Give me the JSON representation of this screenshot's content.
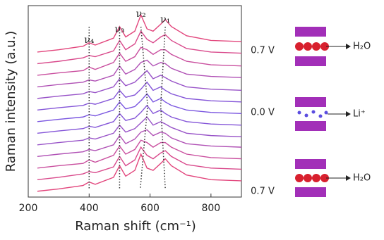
{
  "chart_data": {
    "type": "line",
    "x_label": "Raman shift (cm⁻¹)",
    "y_label": "Raman intensity (a.u.)",
    "x": [
      230,
      300,
      380,
      400,
      420,
      480,
      500,
      520,
      550,
      570,
      590,
      610,
      635,
      650,
      670,
      720,
      800,
      900
    ],
    "xlim": [
      200,
      900
    ],
    "xticks": [
      200,
      400,
      600,
      800
    ],
    "ylim": [
      -0.5,
      16
    ],
    "series": [
      {
        "color": "#e2457c",
        "values": [
          0.0,
          0.2,
          0.5,
          0.8,
          0.6,
          1.2,
          2.2,
          1.3,
          1.8,
          3.2,
          2.0,
          1.8,
          2.4,
          2.8,
          2.2,
          1.4,
          1.0,
          0.9
        ]
      },
      {
        "color": "#d94a8c",
        "values": [
          0.0,
          0.2,
          0.5,
          0.7,
          0.6,
          1.1,
          2.0,
          1.2,
          1.7,
          2.8,
          2.1,
          1.8,
          2.3,
          2.5,
          2.0,
          1.3,
          1.0,
          0.9
        ]
      },
      {
        "color": "#c94e9e",
        "values": [
          0.0,
          0.2,
          0.4,
          0.7,
          0.5,
          1.1,
          1.9,
          1.2,
          1.6,
          2.4,
          2.2,
          1.8,
          2.2,
          2.2,
          1.8,
          1.2,
          0.9,
          0.8
        ]
      },
      {
        "color": "#b051b5",
        "values": [
          0.0,
          0.2,
          0.4,
          0.6,
          0.5,
          1.0,
          1.8,
          1.1,
          1.5,
          2.1,
          2.3,
          1.8,
          2.1,
          2.0,
          1.6,
          1.1,
          0.9,
          0.8
        ]
      },
      {
        "color": "#9853c8",
        "values": [
          0.0,
          0.2,
          0.4,
          0.6,
          0.5,
          1.0,
          1.7,
          1.1,
          1.4,
          1.9,
          2.4,
          1.7,
          2.0,
          1.8,
          1.5,
          1.0,
          0.8,
          0.7
        ]
      },
      {
        "color": "#8455d8",
        "values": [
          0.0,
          0.2,
          0.4,
          0.6,
          0.5,
          1.0,
          1.7,
          1.1,
          1.3,
          1.8,
          2.4,
          1.7,
          2.0,
          1.7,
          1.4,
          1.0,
          0.8,
          0.7
        ]
      },
      {
        "color": "#7a56e0",
        "values": [
          0.0,
          0.2,
          0.4,
          0.6,
          0.5,
          1.0,
          1.7,
          1.1,
          1.3,
          1.8,
          2.4,
          1.7,
          2.0,
          1.7,
          1.4,
          1.0,
          0.8,
          0.7
        ]
      },
      {
        "color": "#8455d8",
        "values": [
          0.0,
          0.2,
          0.4,
          0.6,
          0.5,
          1.0,
          1.7,
          1.1,
          1.3,
          1.8,
          2.4,
          1.7,
          2.0,
          1.7,
          1.4,
          1.0,
          0.8,
          0.7
        ]
      },
      {
        "color": "#9853c8",
        "values": [
          0.0,
          0.2,
          0.4,
          0.6,
          0.5,
          1.0,
          1.7,
          1.1,
          1.4,
          1.9,
          2.4,
          1.7,
          2.0,
          1.8,
          1.5,
          1.0,
          0.8,
          0.7
        ]
      },
      {
        "color": "#b051b5",
        "values": [
          0.0,
          0.2,
          0.4,
          0.6,
          0.5,
          1.0,
          1.8,
          1.1,
          1.5,
          2.1,
          2.3,
          1.8,
          2.1,
          2.0,
          1.6,
          1.1,
          0.9,
          0.8
        ]
      },
      {
        "color": "#c94e9e",
        "values": [
          0.0,
          0.2,
          0.4,
          0.7,
          0.5,
          1.1,
          1.9,
          1.2,
          1.6,
          2.4,
          2.2,
          1.8,
          2.2,
          2.2,
          1.8,
          1.2,
          0.9,
          0.8
        ]
      },
      {
        "color": "#d94a8c",
        "values": [
          0.0,
          0.2,
          0.5,
          0.7,
          0.6,
          1.1,
          2.0,
          1.2,
          1.7,
          2.8,
          2.1,
          1.8,
          2.3,
          2.5,
          2.0,
          1.3,
          1.0,
          0.9
        ]
      },
      {
        "color": "#e2457c",
        "values": [
          0.0,
          0.2,
          0.5,
          0.8,
          0.6,
          1.2,
          2.2,
          1.3,
          1.8,
          3.2,
          2.0,
          1.8,
          2.4,
          2.8,
          2.2,
          1.4,
          1.0,
          0.9
        ]
      }
    ],
    "peaks": [
      {
        "label": "ν₄",
        "x": [
          400,
          400,
          400
        ]
      },
      {
        "label": "ν₃",
        "x": [
          500,
          500,
          500
        ]
      },
      {
        "label": "ν₂",
        "x": [
          570,
          592,
          568
        ]
      },
      {
        "label": "ν₁",
        "x": [
          650,
          635,
          650
        ]
      }
    ],
    "states": [
      {
        "voltage": "0.7 V",
        "species": "H₂O"
      },
      {
        "voltage": "0.0 V",
        "species": "Li⁺"
      },
      {
        "voltage": "0.7 V",
        "species": "H₂O"
      }
    ]
  }
}
